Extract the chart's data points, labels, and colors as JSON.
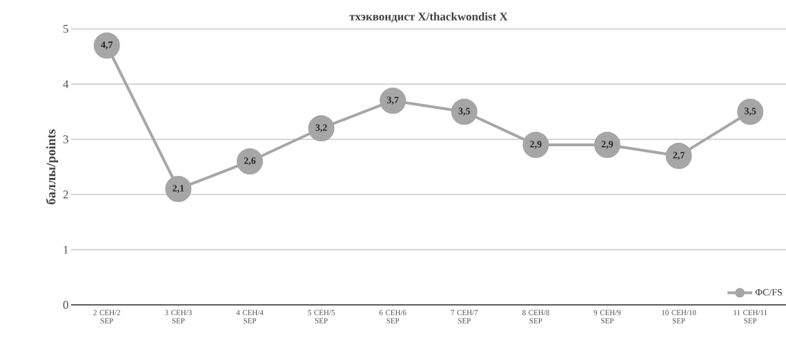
{
  "chart_data": {
    "type": "line",
    "title": "тхэквондист X/thackwondist X",
    "ylabel": "баллы/points",
    "categories": [
      "2 СЕН/2 SEP",
      "3 СЕН/3 SEP",
      "4 СЕН/4 SEP",
      "5 СЕН/5 SEP",
      "6 СЕН/6 SEP",
      "7 СЕН/7 SEP",
      "8 СЕН/8 SEP",
      "9 СЕН/9 SEP",
      "10 СЕН/10 SEP",
      "11 СЕН/11 SEP"
    ],
    "series": [
      {
        "name": "ФС/FS",
        "color": "#a6a6a6",
        "values": [
          4.7,
          2.1,
          2.6,
          3.2,
          3.7,
          3.5,
          2.9,
          2.9,
          2.7,
          3.5
        ],
        "value_labels": [
          "4,7",
          "2,1",
          "2,6",
          "3,2",
          "3,7",
          "3,5",
          "2,9",
          "2,9",
          "2,7",
          "3,5"
        ]
      }
    ],
    "ylim": [
      0,
      5
    ],
    "yticks": [
      0,
      1,
      2,
      3,
      4,
      5
    ],
    "grid": "y",
    "legend": "bottom right",
    "marker": "circle",
    "line_style": "solid"
  }
}
